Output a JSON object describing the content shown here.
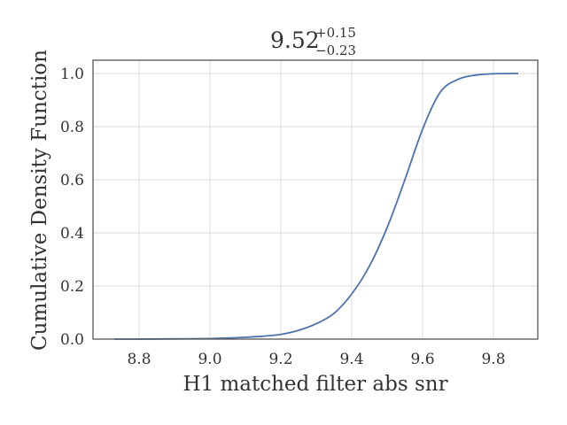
{
  "chart_data": {
    "type": "line",
    "title": {
      "value": "9.52",
      "upper": "+0.15",
      "lower": "−0.23"
    },
    "xlabel": "H1 matched filter abs snr",
    "ylabel": "Cumulative Density Function",
    "xlim": [
      8.67,
      9.925
    ],
    "ylim": [
      0.0,
      1.05
    ],
    "xticks": [
      8.8,
      9.0,
      9.2,
      9.4,
      9.6,
      9.8
    ],
    "xtick_labels": [
      "8.8",
      "9.0",
      "9.2",
      "9.4",
      "9.6",
      "9.8"
    ],
    "yticks": [
      0.0,
      0.2,
      0.4,
      0.6,
      0.8,
      1.0
    ],
    "ytick_labels": [
      "0.0",
      "0.2",
      "0.4",
      "0.6",
      "0.8",
      "1.0"
    ],
    "grid": true,
    "line_color": "#4c72b0",
    "series": [
      {
        "x": [
          8.73,
          8.8,
          8.9,
          9.0,
          9.05,
          9.1,
          9.15,
          9.2,
          9.25,
          9.3,
          9.35,
          9.4,
          9.45,
          9.5,
          9.55,
          9.6,
          9.65,
          9.7,
          9.75,
          9.8,
          9.87
        ],
        "y": [
          0.0,
          0.0,
          0.001,
          0.002,
          0.004,
          0.007,
          0.011,
          0.018,
          0.033,
          0.058,
          0.097,
          0.17,
          0.275,
          0.42,
          0.6,
          0.79,
          0.93,
          0.978,
          0.994,
          0.999,
          1.0
        ]
      }
    ]
  }
}
